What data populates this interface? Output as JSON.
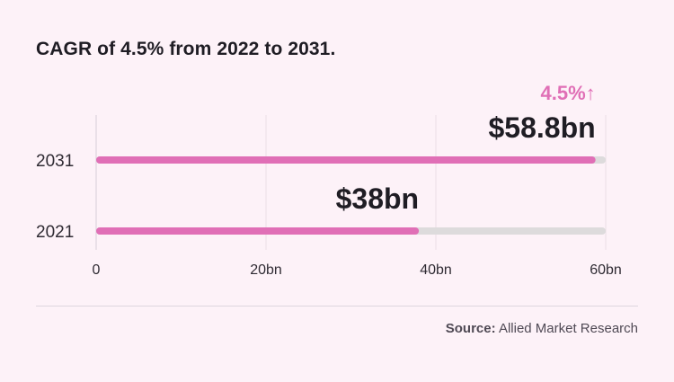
{
  "chart_data": {
    "type": "bar",
    "orientation": "horizontal",
    "title": "CAGR of 4.5% from 2022 to 2031.",
    "categories": [
      "2031",
      "2021"
    ],
    "values": [
      58.8,
      38
    ],
    "value_labels": [
      "$58.8bn",
      "$38bn"
    ],
    "max_value": 60,
    "xlim": [
      0,
      60
    ],
    "x_ticks": [
      {
        "value": 0,
        "label": "0"
      },
      {
        "value": 20,
        "label": "20bn"
      },
      {
        "value": 40,
        "label": "40bn"
      },
      {
        "value": 60,
        "label": "60bn"
      }
    ],
    "annotation": {
      "text": "4.5%↑",
      "category": "2031"
    },
    "grid": true,
    "xlabel": "",
    "ylabel": ""
  },
  "colors": {
    "background": "#fdf2f8",
    "bar": "#e06fb6",
    "track": "#dddbdc",
    "grid": "#eadfe6",
    "text": "#1f1d24",
    "accent": "#e06fb6",
    "axis_text": "#2f2b33",
    "source": "#504a55"
  },
  "source": {
    "prefix": "Source:",
    "name": "Allied Market Research"
  }
}
